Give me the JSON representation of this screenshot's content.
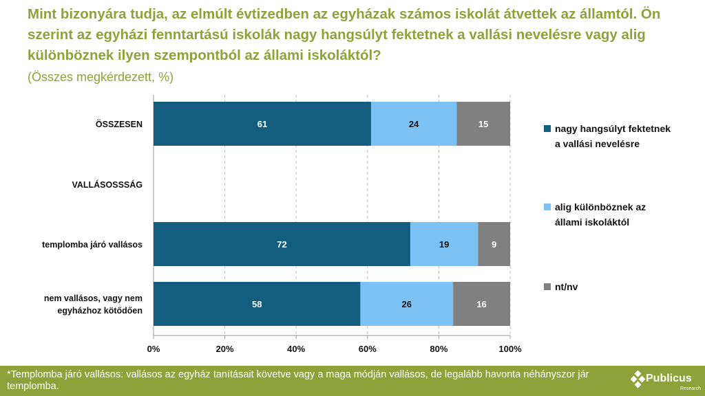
{
  "title": "Mint bizonyára tudja, az elmúlt évtizedben az egyházak számos iskolát átvettek az államtól. Ön szerint az egyházi fenntartású iskolák nagy hangsúlyt fektetnek a vallási nevelésre vagy alig különböznek ilyen szempontból az állami iskoláktól?",
  "subtitle": "(Összes megkérdezett, %)",
  "chart_data": {
    "type": "bar",
    "orientation": "horizontal",
    "stacked": true,
    "categories": [
      "ÖSSZESEN",
      "VALLÁSOSSSÁG",
      "templomba járó vallásos",
      "nem vallásos, vagy nem egyházhoz kötődően"
    ],
    "series": [
      {
        "name": "nagy hangsúlyt fektetnek a vallási nevelésre",
        "color": "#135d80",
        "values": [
          61,
          null,
          72,
          58
        ]
      },
      {
        "name": "alig különböznek az állami iskoláktól",
        "color": "#7cc2f5",
        "values": [
          24,
          null,
          19,
          26
        ]
      },
      {
        "name": "nt/nv",
        "color": "#808080",
        "values": [
          15,
          null,
          9,
          16
        ]
      }
    ],
    "xlim": [
      0,
      100
    ],
    "x_ticks": [
      "0%",
      "20%",
      "40%",
      "60%",
      "80%",
      "100%"
    ],
    "grid": true,
    "legend_position": "right"
  },
  "footer": {
    "note": "*Templomba járó vallásos: vallásos az egyház tanításait követve vagy a maga módján vallásos, de legalább havonta néhányszor jár templomba.",
    "brand": "Publicus",
    "brand_sub": "Research"
  }
}
